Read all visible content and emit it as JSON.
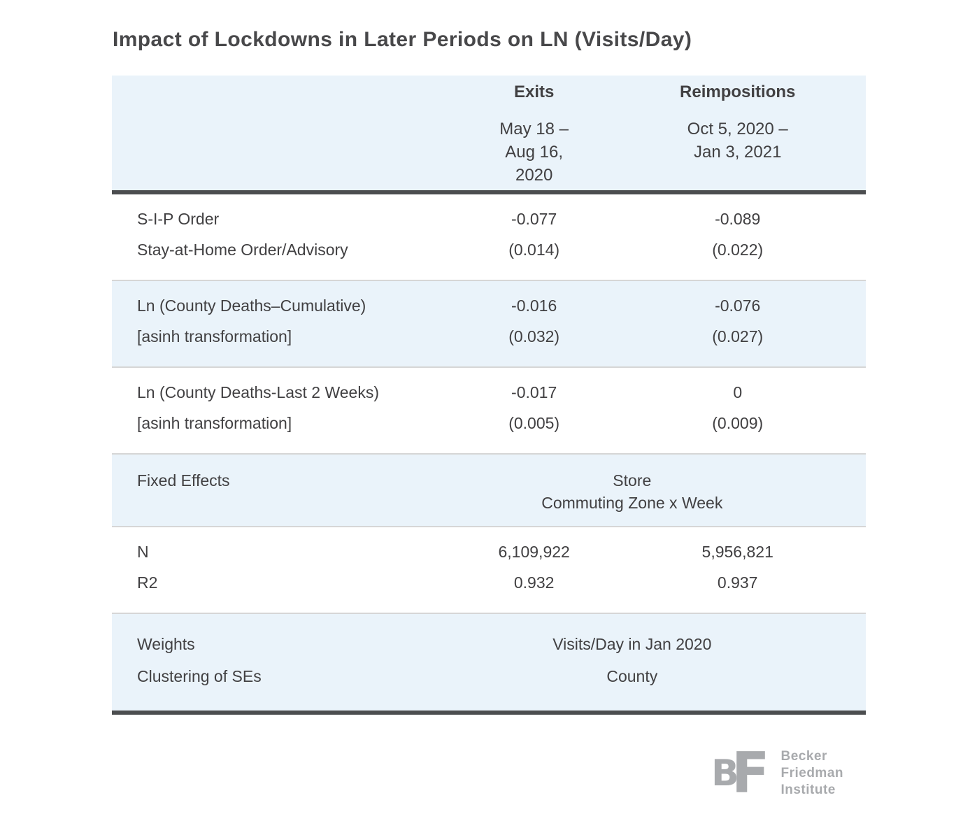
{
  "chart_data": {
    "type": "table",
    "title": "Impact of Lockdowns in Later Periods on LN (Visits/Day)",
    "columns": [
      {
        "label": "Exits",
        "period": [
          "May 18 –",
          "Aug 16,",
          "2020"
        ]
      },
      {
        "label": "Reimpositions",
        "period": [
          "Oct 5, 2020 –",
          "Jan 3, 2021"
        ]
      }
    ],
    "rows": {
      "sip": {
        "label1": "S-I-P Order",
        "label2": "Stay-at-Home Order/Advisory",
        "exits_coef": "-0.077",
        "exits_se": "(0.014)",
        "reimp_coef": "-0.089",
        "reimp_se": "(0.022)"
      },
      "deaths_cumulative": {
        "label1": "Ln (County Deaths–Cumulative)",
        "label2": "[asinh transformation]",
        "exits_coef": "-0.016",
        "exits_se": "(0.032)",
        "reimp_coef": "-0.076",
        "reimp_se": "(0.027)"
      },
      "deaths_last2weeks": {
        "label1": "Ln (County Deaths-Last 2 Weeks)",
        "label2": "[asinh transformation]",
        "exits_coef": "-0.017",
        "exits_se": "(0.005)",
        "reimp_coef": "0",
        "reimp_se": "(0.009)"
      },
      "fixed_effects": {
        "label": "Fixed Effects",
        "value_line1": "Store",
        "value_line2": "Commuting Zone x Week"
      },
      "n": {
        "label": "N",
        "exits": "6,109,922",
        "reimpositions": "5,956,821"
      },
      "r2": {
        "label": "R2",
        "exits": "0.932",
        "reimpositions": "0.937"
      },
      "weights": {
        "label": "Weights",
        "value": "Visits/Day in Jan 2020"
      },
      "clustering": {
        "label": "Clustering of SEs",
        "value": "County"
      }
    }
  },
  "logo": {
    "monogram_b": "B",
    "monogram_f": "F",
    "name_lines": [
      "Becker",
      "Friedman",
      "Institute"
    ]
  },
  "colors": {
    "stripe_blue": "#eaf3fa",
    "rule_dark": "#4b4d4f",
    "rule_light": "#d6d6d6",
    "text_dark": "#414042",
    "logo_gray": "#a8aaad"
  }
}
